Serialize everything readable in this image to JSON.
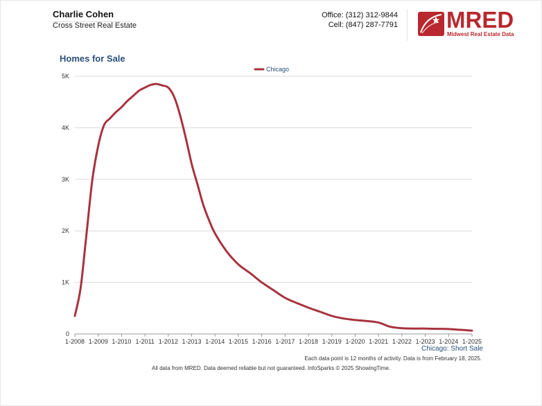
{
  "header": {
    "agent_name": "Charlie Cohen",
    "company": "Cross Street Real Estate",
    "office_phone": "Office: (312) 312-9844",
    "cell_phone": "Cell: (847) 287-7791",
    "logo_word": "MRED",
    "logo_tagline": "Midwest Real Estate Data"
  },
  "colors": {
    "series": "#a8323e",
    "brand": "#b8282e",
    "title": "#2a5078"
  },
  "chart_data": {
    "type": "line",
    "title": "Homes for Sale",
    "legend": [
      "Chicago"
    ],
    "legend_position": "top-center",
    "ylim": [
      0,
      5000
    ],
    "yticks": [
      0,
      1000,
      2000,
      3000,
      4000,
      5000
    ],
    "ytick_labels": [
      "0",
      "1K",
      "2K",
      "3K",
      "4K",
      "5K"
    ],
    "xlim": [
      2008,
      2025
    ],
    "xticks": [
      2008,
      2009,
      2010,
      2011,
      2012,
      2013,
      2014,
      2015,
      2016,
      2017,
      2018,
      2019,
      2020,
      2021,
      2022,
      2023,
      2024,
      2025
    ],
    "xtick_labels": [
      "1-2008",
      "1-2009",
      "1-2010",
      "1-2011",
      "1-2012",
      "1-2013",
      "1-2014",
      "1-2015",
      "1-2016",
      "1-2017",
      "1-2018",
      "1-2019",
      "1-2020",
      "1-2021",
      "1-2022",
      "1-2023",
      "1-2024",
      "1-2025"
    ],
    "series": [
      {
        "name": "Chicago",
        "points": [
          [
            2008.0,
            350
          ],
          [
            2008.25,
            900
          ],
          [
            2008.5,
            1950
          ],
          [
            2008.75,
            3000
          ],
          [
            2009.0,
            3650
          ],
          [
            2009.25,
            4050
          ],
          [
            2009.5,
            4180
          ],
          [
            2009.75,
            4300
          ],
          [
            2010.0,
            4400
          ],
          [
            2010.25,
            4520
          ],
          [
            2010.5,
            4620
          ],
          [
            2010.75,
            4720
          ],
          [
            2011.0,
            4780
          ],
          [
            2011.25,
            4830
          ],
          [
            2011.5,
            4850
          ],
          [
            2011.75,
            4820
          ],
          [
            2012.0,
            4780
          ],
          [
            2012.25,
            4600
          ],
          [
            2012.5,
            4250
          ],
          [
            2012.75,
            3800
          ],
          [
            2013.0,
            3300
          ],
          [
            2013.25,
            2900
          ],
          [
            2013.5,
            2500
          ],
          [
            2013.75,
            2200
          ],
          [
            2014.0,
            1950
          ],
          [
            2014.5,
            1600
          ],
          [
            2015.0,
            1350
          ],
          [
            2015.5,
            1180
          ],
          [
            2016.0,
            1000
          ],
          [
            2016.5,
            850
          ],
          [
            2017.0,
            700
          ],
          [
            2017.5,
            600
          ],
          [
            2018.0,
            510
          ],
          [
            2018.5,
            430
          ],
          [
            2019.0,
            350
          ],
          [
            2019.5,
            300
          ],
          [
            2020.0,
            270
          ],
          [
            2020.5,
            250
          ],
          [
            2021.0,
            220
          ],
          [
            2021.5,
            140
          ],
          [
            2022.0,
            110
          ],
          [
            2022.5,
            105
          ],
          [
            2023.0,
            105
          ],
          [
            2023.5,
            100
          ],
          [
            2024.0,
            95
          ],
          [
            2024.5,
            80
          ],
          [
            2025.0,
            65
          ]
        ]
      }
    ],
    "series_caption": "Chicago: Short Sale",
    "note": "Each data point is 12 months of activity. Data is from February 18, 2025."
  },
  "footer": {
    "disclaimer": "All data from MRED. Data deemed reliable but not guaranteed. InfoSparks © 2025 ShowingTime."
  }
}
